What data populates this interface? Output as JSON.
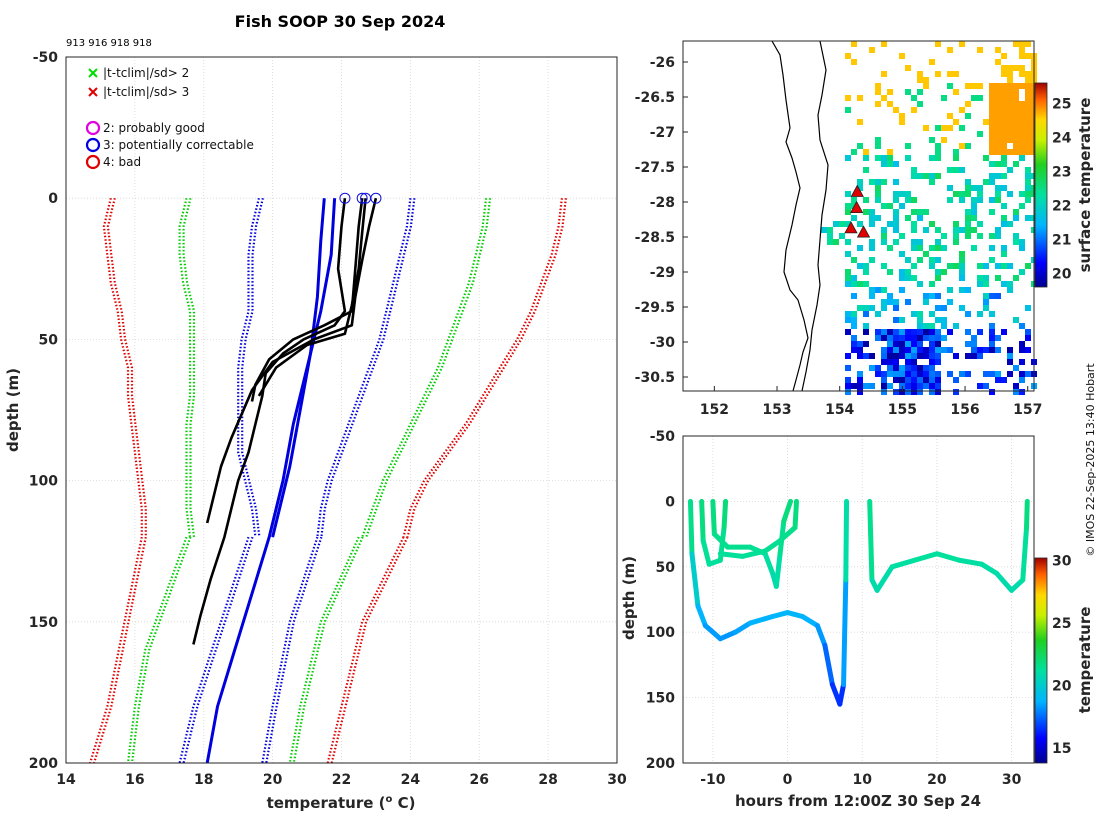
{
  "chart_data": [
    {
      "type": "line",
      "title": "Fish SOOP 30 Sep 2024",
      "subtitle": "913 916 918 918",
      "xlabel": "temperature (",
      "xlabel_sup": "o",
      "xlabel_end": " C)",
      "ylabel": "depth (m)",
      "xlim": [
        14,
        30
      ],
      "ylim": [
        -50,
        200
      ],
      "xticks": [
        "14",
        "16",
        "18",
        "20",
        "22",
        "24",
        "26",
        "28",
        "30"
      ],
      "yticks": [
        "-50",
        "0",
        "50",
        "100",
        "150",
        "200"
      ],
      "legend": [
        {
          "marker": "x",
          "color": "#00dd00",
          "label": "|t-tclim|/sd> 2"
        },
        {
          "marker": "x",
          "color": "#e00000",
          "label": "|t-tclim|/sd> 3"
        },
        {
          "marker": "o",
          "color": "#e000e0",
          "label": "2: probably good"
        },
        {
          "marker": "o",
          "color": "#0000e0",
          "label": "3: potentially correctable"
        },
        {
          "marker": "o",
          "color": "#e00000",
          "label": "4: bad"
        }
      ],
      "series": [
        {
          "name": "clim -3sd",
          "color": "#e00000",
          "style": "dotted",
          "points": [
            [
              15.3,
              0
            ],
            [
              15.1,
              10
            ],
            [
              15.2,
              20
            ],
            [
              15.3,
              30
            ],
            [
              15.5,
              40
            ],
            [
              15.6,
              50
            ],
            [
              15.8,
              60
            ],
            [
              15.8,
              70
            ],
            [
              15.9,
              80
            ],
            [
              16.0,
              90
            ],
            [
              16.1,
              100
            ],
            [
              16.2,
              110
            ],
            [
              16.2,
              120
            ]
          ]
        },
        {
          "name": "clim -2sd",
          "color": "#00cc00",
          "style": "dotted",
          "points": [
            [
              17.5,
              0
            ],
            [
              17.3,
              10
            ],
            [
              17.3,
              20
            ],
            [
              17.4,
              30
            ],
            [
              17.6,
              40
            ],
            [
              17.6,
              50
            ],
            [
              17.6,
              60
            ],
            [
              17.6,
              70
            ],
            [
              17.5,
              80
            ],
            [
              17.5,
              90
            ],
            [
              17.5,
              100
            ],
            [
              17.5,
              110
            ],
            [
              17.6,
              120
            ]
          ]
        },
        {
          "name": "clim -1sd",
          "color": "#0000dd",
          "style": "dotted",
          "points": [
            [
              19.6,
              0
            ],
            [
              19.4,
              10
            ],
            [
              19.3,
              20
            ],
            [
              19.3,
              30
            ],
            [
              19.3,
              40
            ],
            [
              19.1,
              50
            ],
            [
              19.0,
              60
            ],
            [
              19.0,
              70
            ],
            [
              19.0,
              80
            ],
            [
              19.0,
              90
            ],
            [
              19.2,
              100
            ],
            [
              19.4,
              110
            ],
            [
              19.5,
              120
            ]
          ]
        },
        {
          "name": "clim +1sd",
          "color": "#0000dd",
          "style": "dotted",
          "points": [
            [
              24.0,
              0
            ],
            [
              23.9,
              10
            ],
            [
              23.7,
              20
            ],
            [
              23.5,
              30
            ],
            [
              23.3,
              40
            ],
            [
              23.1,
              50
            ],
            [
              22.8,
              60
            ],
            [
              22.5,
              70
            ],
            [
              22.2,
              80
            ],
            [
              21.9,
              90
            ],
            [
              21.6,
              100
            ],
            [
              21.4,
              110
            ],
            [
              21.3,
              120
            ]
          ]
        },
        {
          "name": "clim +2sd",
          "color": "#00cc00",
          "style": "dotted",
          "points": [
            [
              26.2,
              0
            ],
            [
              26.1,
              10
            ],
            [
              25.9,
              20
            ],
            [
              25.7,
              30
            ],
            [
              25.4,
              40
            ],
            [
              25.1,
              50
            ],
            [
              24.8,
              60
            ],
            [
              24.4,
              70
            ],
            [
              24.0,
              80
            ],
            [
              23.6,
              90
            ],
            [
              23.2,
              100
            ],
            [
              22.9,
              110
            ],
            [
              22.6,
              120
            ]
          ]
        },
        {
          "name": "clim +3sd",
          "color": "#e00000",
          "style": "dotted",
          "points": [
            [
              28.4,
              0
            ],
            [
              28.3,
              10
            ],
            [
              28.1,
              20
            ],
            [
              27.8,
              30
            ],
            [
              27.5,
              40
            ],
            [
              27.1,
              50
            ],
            [
              26.6,
              60
            ],
            [
              26.1,
              70
            ],
            [
              25.6,
              80
            ],
            [
              25.0,
              90
            ],
            [
              24.4,
              100
            ],
            [
              24.0,
              110
            ],
            [
              23.8,
              120
            ]
          ]
        },
        {
          "name": "clim -2sd deep",
          "color": "#00cc00",
          "style": "dotted",
          "points": [
            [
              17.5,
              120
            ],
            [
              16.9,
              140
            ],
            [
              16.3,
              160
            ],
            [
              16.0,
              180
            ],
            [
              15.8,
              200
            ]
          ]
        },
        {
          "name": "clim -3sd deep",
          "color": "#e00000",
          "style": "dotted",
          "points": [
            [
              16.2,
              120
            ],
            [
              15.7,
              150
            ],
            [
              15.2,
              180
            ],
            [
              14.7,
              200
            ]
          ]
        },
        {
          "name": "clim -1sd deep",
          "color": "#0000dd",
          "style": "dotted",
          "points": [
            [
              19.3,
              120
            ],
            [
              18.5,
              150
            ],
            [
              17.7,
              180
            ],
            [
              17.3,
              200
            ]
          ]
        },
        {
          "name": "clim +1sd deep",
          "color": "#0000dd",
          "style": "dotted",
          "points": [
            [
              21.3,
              120
            ],
            [
              20.5,
              150
            ],
            [
              20.0,
              180
            ],
            [
              19.7,
              200
            ]
          ]
        },
        {
          "name": "clim +2sd deep",
          "color": "#00cc00",
          "style": "dotted",
          "points": [
            [
              22.5,
              120
            ],
            [
              21.4,
              150
            ],
            [
              20.8,
              180
            ],
            [
              20.5,
              200
            ]
          ]
        },
        {
          "name": "clim +3sd deep",
          "color": "#e00000",
          "style": "dotted",
          "points": [
            [
              23.8,
              120
            ],
            [
              22.6,
              150
            ],
            [
              22.0,
              180
            ],
            [
              21.6,
              200
            ]
          ]
        },
        {
          "name": "clim mean a",
          "color": "#0000dd",
          "style": "solid",
          "points": [
            [
              21.5,
              0
            ],
            [
              21.4,
              15
            ],
            [
              21.3,
              35
            ],
            [
              21.1,
              55
            ],
            [
              20.8,
              75
            ],
            [
              20.5,
              95
            ],
            [
              20.2,
              110
            ],
            [
              20.0,
              120
            ]
          ]
        },
        {
          "name": "clim mean b",
          "color": "#0000dd",
          "style": "solid",
          "points": [
            [
              21.8,
              0
            ],
            [
              21.7,
              20
            ],
            [
              21.4,
              40
            ],
            [
              21.0,
              60
            ],
            [
              20.6,
              80
            ],
            [
              20.3,
              100
            ],
            [
              19.9,
              120
            ],
            [
              19.4,
              140
            ],
            [
              18.9,
              160
            ],
            [
              18.4,
              180
            ],
            [
              18.1,
              200
            ]
          ]
        },
        {
          "name": "913",
          "color": "#000000",
          "style": "solid",
          "points": [
            [
              22.1,
              0
            ],
            [
              22.0,
              10
            ],
            [
              21.9,
              25
            ],
            [
              22.1,
              40
            ],
            [
              21.8,
              45
            ],
            [
              20.9,
              50
            ],
            [
              20.3,
              55
            ],
            [
              19.8,
              62
            ],
            [
              19.7,
              70
            ],
            [
              19.5,
              80
            ],
            [
              19.3,
              90
            ],
            [
              19.0,
              100
            ],
            [
              18.8,
              110
            ],
            [
              18.6,
              120
            ],
            [
              18.2,
              135
            ],
            [
              17.9,
              148
            ],
            [
              17.7,
              158
            ]
          ]
        },
        {
          "name": "916",
          "color": "#000000",
          "style": "solid",
          "points": [
            [
              22.6,
              0
            ],
            [
              22.5,
              10
            ],
            [
              22.4,
              25
            ],
            [
              22.3,
              40
            ],
            [
              21.5,
              45
            ],
            [
              20.6,
              50
            ],
            [
              19.9,
              57
            ],
            [
              19.5,
              66
            ],
            [
              19.4,
              72
            ]
          ]
        },
        {
          "name": "918",
          "color": "#000000",
          "style": "solid",
          "points": [
            [
              22.7,
              0
            ],
            [
              22.6,
              12
            ],
            [
              22.5,
              25
            ],
            [
              22.3,
              38
            ],
            [
              22.1,
              48
            ],
            [
              21.0,
              52
            ],
            [
              20.1,
              60
            ],
            [
              19.6,
              70
            ]
          ]
        },
        {
          "name": "918b",
          "color": "#000000",
          "style": "solid",
          "points": [
            [
              23.0,
              0
            ],
            [
              22.8,
              10
            ],
            [
              22.6,
              22
            ],
            [
              22.4,
              35
            ],
            [
              22.3,
              45
            ],
            [
              21.2,
              50
            ],
            [
              20.0,
              58
            ],
            [
              19.4,
              68
            ],
            [
              18.8,
              85
            ],
            [
              18.5,
              95
            ],
            [
              18.3,
              105
            ],
            [
              18.1,
              115
            ]
          ]
        }
      ],
      "drop_markers": [
        [
          22.1,
          0
        ],
        [
          22.6,
          0
        ],
        [
          22.7,
          0
        ],
        [
          23.0,
          0
        ]
      ]
    },
    {
      "type": "heatmap",
      "name": "sst-map",
      "xticks": [
        "152",
        "153",
        "154",
        "155",
        "156",
        "157"
      ],
      "yticks": [
        "-26",
        "-26.5",
        "-27",
        "-27.5",
        "-28",
        "-28.5",
        "-29",
        "-29.5",
        "-30",
        "-30.5"
      ],
      "xlim": [
        151.5,
        157.1
      ],
      "ylim": [
        -30.7,
        -25.7
      ],
      "colorbar_label": "surface temperature",
      "colorbar_ticks": [
        "20",
        "21",
        "22",
        "23",
        "24",
        "25"
      ],
      "colorbar_range": [
        19.6,
        25.6
      ],
      "drops": [
        [
          154.28,
          -27.85
        ],
        [
          154.27,
          -28.08
        ],
        [
          154.18,
          -28.37
        ],
        [
          154.38,
          -28.43
        ]
      ]
    },
    {
      "type": "scatter",
      "name": "time-depth",
      "xlabel": "hours from 12:00Z 30 Sep 24",
      "ylabel": "depth (m)",
      "xlim": [
        -14,
        33
      ],
      "ylim": [
        -50,
        200
      ],
      "xticks": [
        "-10",
        "0",
        "10",
        "20",
        "30"
      ],
      "yticks": [
        "-50",
        "0",
        "50",
        "100",
        "150",
        "200"
      ],
      "colorbar_label": "temperature",
      "colorbar_ticks": [
        "15",
        "20",
        "25",
        "30"
      ],
      "colorbar_range": [
        13.8,
        30.2
      ]
    }
  ],
  "footer": {
    "credit": "© IMOS 22-Sep-2025 13:40 Hobart"
  }
}
